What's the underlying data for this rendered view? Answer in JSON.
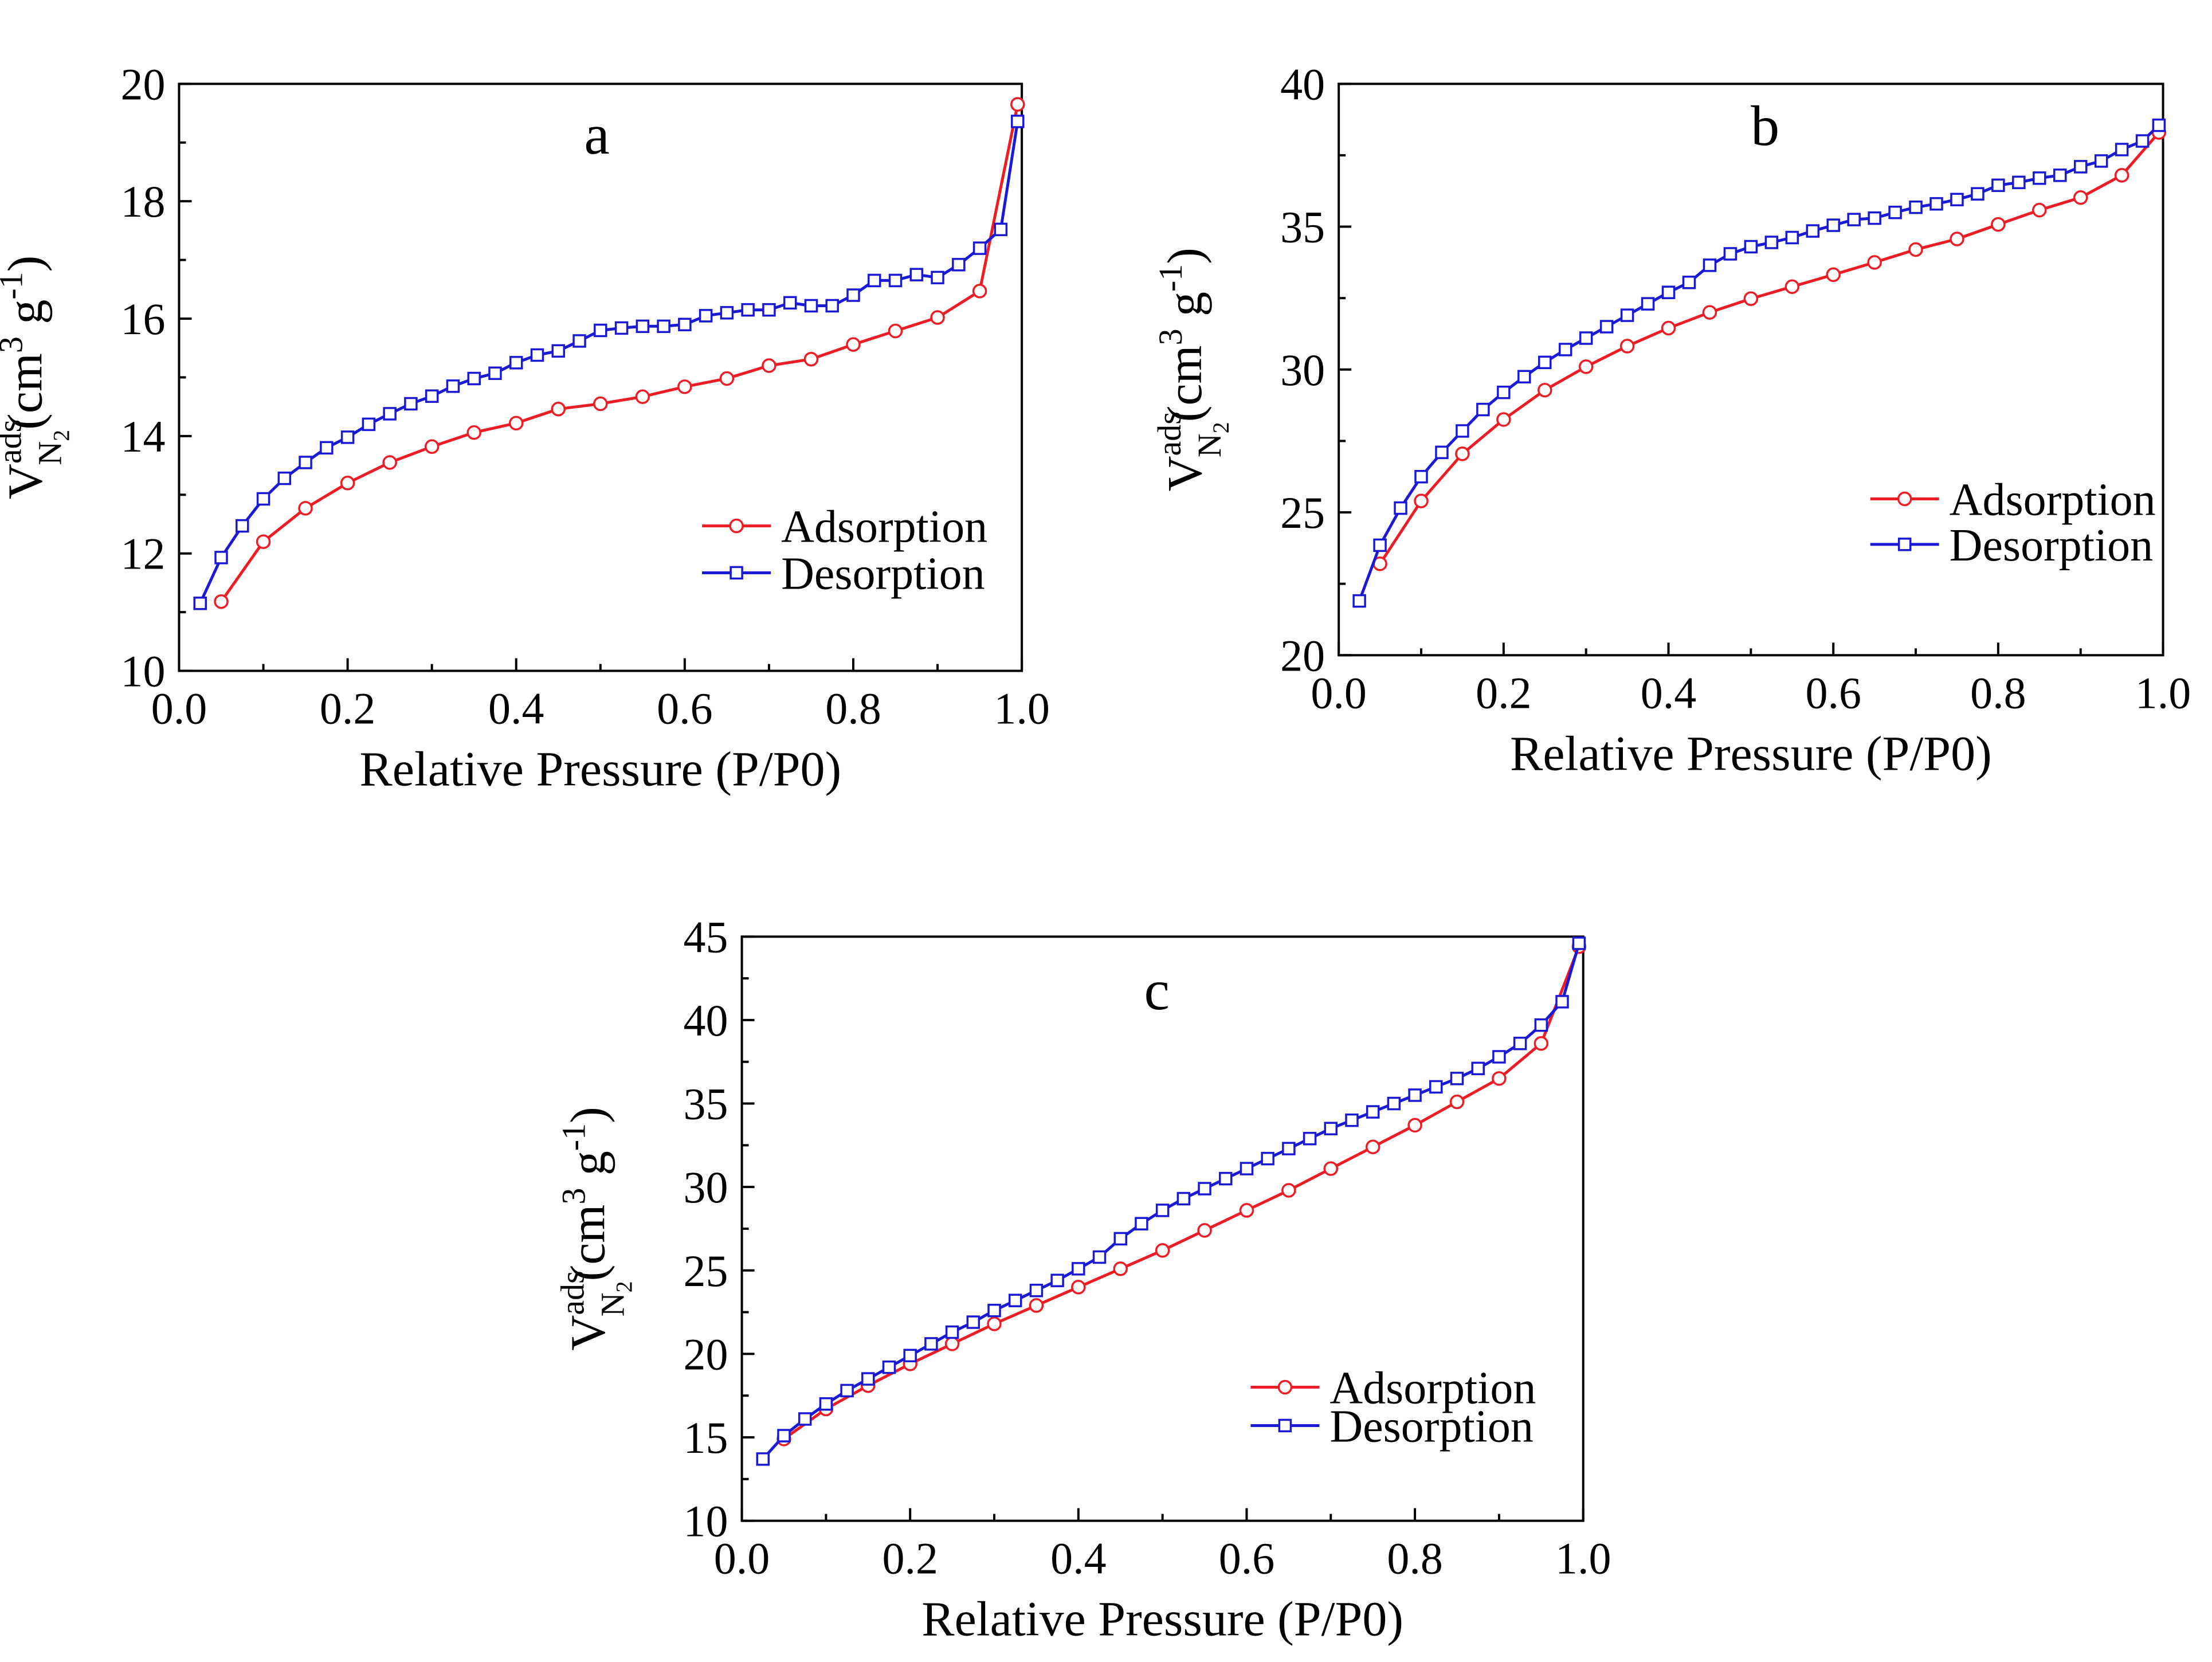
{
  "figure": {
    "axis_label_x": "Relative Pressure (P/P0)",
    "axis_label_y": {
      "symbol": "V",
      "superscript": "ads",
      "subscript": "N",
      "subscript2": "2",
      "unit_open": "(cm",
      "unit_pow": "3",
      "unit_mid": " g",
      "unit_pow2": "-1",
      "unit_close": ")"
    },
    "colors": {
      "adsorption": "#ee1c24",
      "desorption": "#1a1ad6",
      "axis": "#000000"
    }
  },
  "chart_data": [
    {
      "type": "line",
      "panel": "a",
      "title": "a",
      "xlabel": "Relative Pressure (P/P0)",
      "ylabel": "V_N2^ads (cm3 g-1)",
      "xlim": [
        0.0,
        1.0
      ],
      "ylim": [
        10,
        20
      ],
      "xticks": [
        "0.0",
        "0.2",
        "0.4",
        "0.6",
        "0.8",
        "1.0"
      ],
      "yticks": [
        "10",
        "12",
        "14",
        "16",
        "18",
        "20"
      ],
      "legend": "right",
      "series": [
        {
          "name": "Adsorption",
          "x": [
            0.05,
            0.1,
            0.15,
            0.2,
            0.25,
            0.3,
            0.35,
            0.4,
            0.45,
            0.5,
            0.55,
            0.6,
            0.65,
            0.7,
            0.75,
            0.8,
            0.85,
            0.9,
            0.95,
            0.995
          ],
          "y": [
            11.18,
            12.2,
            12.77,
            13.2,
            13.55,
            13.82,
            14.06,
            14.22,
            14.46,
            14.55,
            14.67,
            14.84,
            14.98,
            15.2,
            15.31,
            15.56,
            15.79,
            16.02,
            16.47,
            19.65
          ]
        },
        {
          "name": "Desorption",
          "x": [
            0.025,
            0.05,
            0.075,
            0.1,
            0.125,
            0.15,
            0.175,
            0.2,
            0.225,
            0.25,
            0.275,
            0.3,
            0.325,
            0.35,
            0.375,
            0.4,
            0.425,
            0.45,
            0.475,
            0.5,
            0.525,
            0.55,
            0.575,
            0.6,
            0.625,
            0.65,
            0.675,
            0.7,
            0.725,
            0.75,
            0.775,
            0.8,
            0.825,
            0.85,
            0.875,
            0.9,
            0.925,
            0.95,
            0.975,
            0.995
          ],
          "y": [
            11.15,
            11.93,
            12.47,
            12.93,
            13.28,
            13.55,
            13.8,
            13.98,
            14.2,
            14.38,
            14.55,
            14.68,
            14.85,
            14.98,
            15.07,
            15.25,
            15.38,
            15.45,
            15.62,
            15.8,
            15.84,
            15.87,
            15.87,
            15.9,
            16.05,
            16.1,
            16.15,
            16.15,
            16.27,
            16.22,
            16.22,
            16.4,
            16.65,
            16.65,
            16.75,
            16.7,
            16.92,
            17.2,
            17.52,
            19.36
          ]
        }
      ]
    },
    {
      "type": "line",
      "panel": "b",
      "title": "b",
      "xlabel": "Relative Pressure (P/P0)",
      "ylabel": "V_N2^ads (cm3 g-1)",
      "xlim": [
        0.0,
        1.0
      ],
      "ylim": [
        20,
        40
      ],
      "xticks": [
        "0.0",
        "0.2",
        "0.4",
        "0.6",
        "0.8",
        "1.0"
      ],
      "yticks": [
        "20",
        "25",
        "30",
        "35",
        "40"
      ],
      "legend": "right",
      "series": [
        {
          "name": "Adsorption",
          "x": [
            0.05,
            0.1,
            0.15,
            0.2,
            0.25,
            0.3,
            0.35,
            0.4,
            0.45,
            0.5,
            0.55,
            0.6,
            0.65,
            0.7,
            0.75,
            0.8,
            0.85,
            0.9,
            0.95,
            0.995
          ],
          "y": [
            23.2,
            25.4,
            27.05,
            28.25,
            29.28,
            30.1,
            30.82,
            31.45,
            32.0,
            32.48,
            32.9,
            33.32,
            33.75,
            34.2,
            34.57,
            35.08,
            35.58,
            36.02,
            36.8,
            38.3
          ]
        },
        {
          "name": "Desorption",
          "x": [
            0.025,
            0.05,
            0.075,
            0.1,
            0.125,
            0.15,
            0.175,
            0.2,
            0.225,
            0.25,
            0.275,
            0.3,
            0.325,
            0.35,
            0.375,
            0.4,
            0.425,
            0.45,
            0.475,
            0.5,
            0.525,
            0.55,
            0.575,
            0.6,
            0.625,
            0.65,
            0.675,
            0.7,
            0.725,
            0.75,
            0.775,
            0.8,
            0.825,
            0.85,
            0.875,
            0.9,
            0.925,
            0.95,
            0.975,
            0.995
          ],
          "y": [
            21.9,
            23.85,
            25.15,
            26.25,
            27.1,
            27.85,
            28.6,
            29.2,
            29.75,
            30.25,
            30.7,
            31.1,
            31.5,
            31.9,
            32.3,
            32.7,
            33.05,
            33.65,
            34.05,
            34.3,
            34.45,
            34.62,
            34.85,
            35.05,
            35.25,
            35.3,
            35.5,
            35.68,
            35.8,
            35.95,
            36.15,
            36.45,
            36.55,
            36.7,
            36.8,
            37.1,
            37.3,
            37.7,
            38.0,
            38.55
          ]
        }
      ]
    },
    {
      "type": "line",
      "panel": "c",
      "title": "c",
      "xlabel": "Relative Pressure (P/P0)",
      "ylabel": "V_N2^ads (cm3 g-1)",
      "xlim": [
        0.0,
        1.0
      ],
      "ylim": [
        10,
        45
      ],
      "xticks": [
        "0.0",
        "0.2",
        "0.4",
        "0.6",
        "0.8",
        "1.0"
      ],
      "yticks": [
        "10",
        "15",
        "20",
        "25",
        "30",
        "35",
        "40",
        "45"
      ],
      "legend": "right",
      "series": [
        {
          "name": "Adsorption",
          "x": [
            0.05,
            0.1,
            0.15,
            0.2,
            0.25,
            0.3,
            0.35,
            0.4,
            0.45,
            0.5,
            0.55,
            0.6,
            0.65,
            0.7,
            0.75,
            0.8,
            0.85,
            0.9,
            0.95,
            0.995
          ],
          "y": [
            14.9,
            16.7,
            18.1,
            19.4,
            20.6,
            21.8,
            22.9,
            24.0,
            25.1,
            26.2,
            27.4,
            28.6,
            29.8,
            31.1,
            32.4,
            33.7,
            35.1,
            36.5,
            38.6,
            44.4
          ]
        },
        {
          "name": "Desorption",
          "x": [
            0.025,
            0.05,
            0.075,
            0.1,
            0.125,
            0.15,
            0.175,
            0.2,
            0.225,
            0.25,
            0.275,
            0.3,
            0.325,
            0.35,
            0.375,
            0.4,
            0.425,
            0.45,
            0.475,
            0.5,
            0.525,
            0.55,
            0.575,
            0.6,
            0.625,
            0.65,
            0.675,
            0.7,
            0.725,
            0.75,
            0.775,
            0.8,
            0.825,
            0.85,
            0.875,
            0.9,
            0.925,
            0.95,
            0.975,
            0.995
          ],
          "y": [
            13.7,
            15.1,
            16.1,
            17.0,
            17.8,
            18.5,
            19.2,
            19.9,
            20.6,
            21.3,
            21.9,
            22.6,
            23.2,
            23.8,
            24.4,
            25.1,
            25.8,
            26.9,
            27.8,
            28.6,
            29.3,
            29.9,
            30.5,
            31.1,
            31.7,
            32.3,
            32.9,
            33.5,
            34.0,
            34.5,
            35.0,
            35.5,
            36.0,
            36.5,
            37.1,
            37.8,
            38.6,
            39.7,
            41.1,
            44.6
          ]
        }
      ]
    }
  ]
}
